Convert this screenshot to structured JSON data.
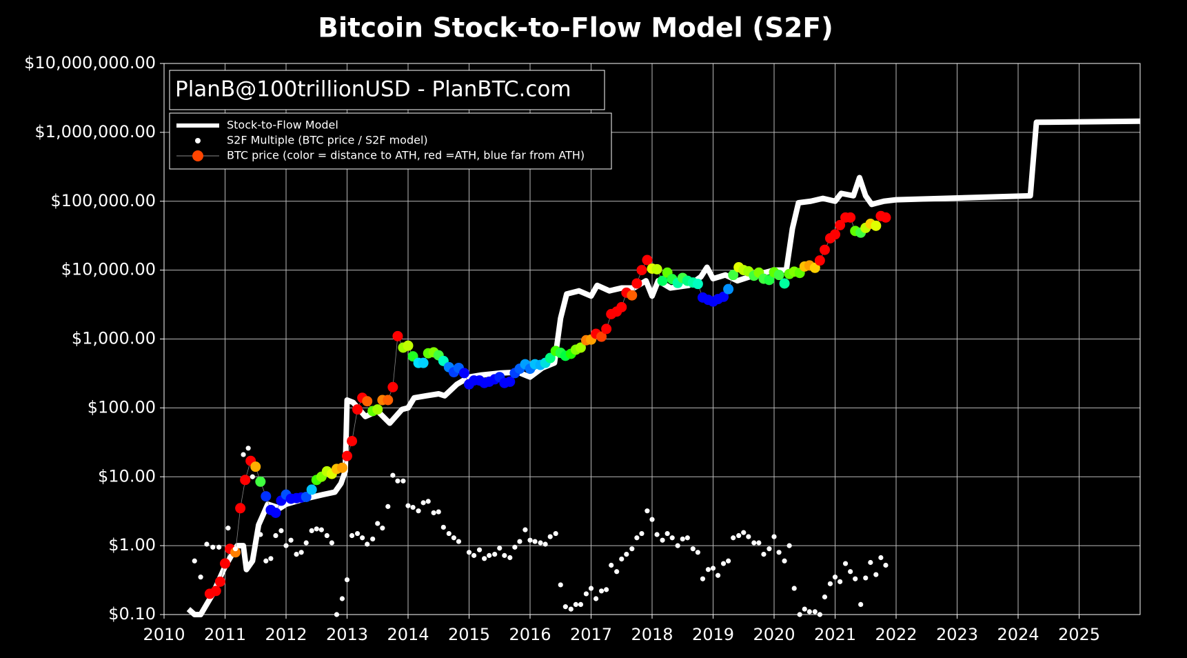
{
  "chart_data": {
    "type": "line",
    "title": "Bitcoin Stock-to-Flow Model (S2F)",
    "annotation": "PlanB@100trillionUSD - PlanBTC.com",
    "log_y": true,
    "grid": true,
    "legend": "upper left",
    "xlim": [
      2010,
      2026
    ],
    "xticks": [
      2010,
      2011,
      2012,
      2013,
      2014,
      2015,
      2016,
      2017,
      2018,
      2019,
      2020,
      2021,
      2022,
      2023,
      2024,
      2025
    ],
    "ylim": [
      0.1,
      10000000
    ],
    "yticks": [
      {
        "value": 0.1,
        "label": "$0.10"
      },
      {
        "value": 1,
        "label": "$1.00"
      },
      {
        "value": 10,
        "label": "$10.00"
      },
      {
        "value": 100,
        "label": "$100.00"
      },
      {
        "value": 1000,
        "label": "$1,000.00"
      },
      {
        "value": 10000,
        "label": "$10,000.00"
      },
      {
        "value": 100000,
        "label": "$100,000.00"
      },
      {
        "value": 1000000,
        "label": "$1,000,000.00"
      },
      {
        "value": 10000000,
        "label": "$10,000,000.00"
      }
    ],
    "series": [
      {
        "name": "Stock-to-Flow Model",
        "kind": "line",
        "color": "#ffffff",
        "x": [
          2010.4,
          2010.5,
          2010.6,
          2010.8,
          2011.0,
          2011.2,
          2011.3,
          2011.35,
          2011.45,
          2011.55,
          2011.7,
          2011.9,
          2012.0,
          2012.2,
          2012.4,
          2012.6,
          2012.8,
          2012.9,
          2012.97,
          2013.0,
          2013.1,
          2013.3,
          2013.5,
          2013.7,
          2013.9,
          2014.0,
          2014.1,
          2014.3,
          2014.5,
          2014.6,
          2014.8,
          2015.0,
          2015.2,
          2015.5,
          2015.8,
          2016.0,
          2016.2,
          2016.4,
          2016.5,
          2016.6,
          2016.8,
          2017.0,
          2017.1,
          2017.3,
          2017.5,
          2017.7,
          2017.9,
          2018.0,
          2018.1,
          2018.3,
          2018.6,
          2018.8,
          2018.9,
          2019.0,
          2019.2,
          2019.4,
          2019.6,
          2019.8,
          2020.0,
          2020.2,
          2020.3,
          2020.4,
          2020.6,
          2020.8,
          2021.0,
          2021.1,
          2021.3,
          2021.4,
          2021.5,
          2021.6,
          2021.8,
          2022.0,
          2024.2,
          2024.3,
          2026.0
        ],
        "values": [
          0.12,
          0.1,
          0.1,
          0.2,
          0.5,
          1.0,
          1.0,
          0.45,
          0.6,
          2,
          4,
          3.5,
          4,
          4.5,
          5,
          5.5,
          6,
          8,
          12,
          130,
          120,
          75,
          90,
          60,
          95,
          100,
          140,
          150,
          160,
          150,
          220,
          280,
          300,
          320,
          330,
          280,
          380,
          450,
          2000,
          4500,
          5000,
          4200,
          6000,
          5000,
          5500,
          5500,
          7000,
          4200,
          7000,
          5500,
          6000,
          8000,
          11000,
          7500,
          8500,
          7000,
          8000,
          9000,
          10000,
          10000,
          40000,
          95000,
          100000,
          110000,
          100000,
          130000,
          120000,
          220000,
          120000,
          90000,
          100000,
          105000,
          120000,
          1400000,
          1450000
        ]
      },
      {
        "name": "S2F Multiple (BTC price / S2F model)",
        "kind": "scatter",
        "color": "#ffffff",
        "x": [
          2010.5,
          2010.6,
          2010.7,
          2010.8,
          2010.9,
          2011.05,
          2011.17,
          2011.3,
          2011.38,
          2011.45,
          2011.58,
          2011.67,
          2011.75,
          2011.83,
          2011.92,
          2012.0,
          2012.08,
          2012.17,
          2012.25,
          2012.33,
          2012.42,
          2012.5,
          2012.58,
          2012.67,
          2012.75,
          2012.83,
          2012.92,
          2013.0,
          2013.08,
          2013.17,
          2013.25,
          2013.33,
          2013.42,
          2013.5,
          2013.58,
          2013.67,
          2013.75,
          2013.83,
          2013.92,
          2014.0,
          2014.08,
          2014.17,
          2014.25,
          2014.33,
          2014.42,
          2014.5,
          2014.58,
          2014.67,
          2014.75,
          2014.83,
          2015.0,
          2015.08,
          2015.17,
          2015.25,
          2015.33,
          2015.42,
          2015.5,
          2015.58,
          2015.67,
          2015.75,
          2015.83,
          2015.92,
          2016.0,
          2016.08,
          2016.17,
          2016.25,
          2016.33,
          2016.42,
          2016.5,
          2016.58,
          2016.67,
          2016.75,
          2016.83,
          2016.92,
          2017.0,
          2017.08,
          2017.17,
          2017.25,
          2017.33,
          2017.42,
          2017.5,
          2017.58,
          2017.67,
          2017.75,
          2017.83,
          2017.92,
          2018.0,
          2018.08,
          2018.17,
          2018.25,
          2018.33,
          2018.42,
          2018.5,
          2018.58,
          2018.67,
          2018.75,
          2018.83,
          2018.92,
          2019.0,
          2019.08,
          2019.17,
          2019.25,
          2019.33,
          2019.42,
          2019.5,
          2019.58,
          2019.67,
          2019.75,
          2019.83,
          2019.92,
          2020.0,
          2020.08,
          2020.17,
          2020.25,
          2020.33,
          2020.42,
          2020.5,
          2020.58,
          2020.67,
          2020.75,
          2020.83,
          2020.92,
          2021.0,
          2021.08,
          2021.17,
          2021.25,
          2021.33,
          2021.42,
          2021.5,
          2021.58,
          2021.67,
          2021.75,
          2021.83
        ],
        "values": [
          0.6,
          0.35,
          1.05,
          0.95,
          0.95,
          1.8,
          0.9,
          21,
          26,
          10,
          1.45,
          0.6,
          0.65,
          1.4,
          1.65,
          1.0,
          1.2,
          0.75,
          0.8,
          1.1,
          1.65,
          1.75,
          1.7,
          1.4,
          1.1,
          0.1,
          0.17,
          0.32,
          1.4,
          1.5,
          1.3,
          1.05,
          1.25,
          2.1,
          1.8,
          3.7,
          10.5,
          8.7,
          8.7,
          3.8,
          3.6,
          3.2,
          4.2,
          4.4,
          3.0,
          3.1,
          1.85,
          1.5,
          1.3,
          1.15,
          0.8,
          0.72,
          0.87,
          0.65,
          0.72,
          0.75,
          0.92,
          0.72,
          0.67,
          0.95,
          1.15,
          1.7,
          1.2,
          1.15,
          1.1,
          1.05,
          1.35,
          1.5,
          0.27,
          0.13,
          0.12,
          0.14,
          0.14,
          0.2,
          0.24,
          0.17,
          0.22,
          0.23,
          0.52,
          0.42,
          0.64,
          0.75,
          0.9,
          1.3,
          1.5,
          3.2,
          2.4,
          1.45,
          1.2,
          1.5,
          1.3,
          1.0,
          1.25,
          1.3,
          0.9,
          0.8,
          0.33,
          0.45,
          0.47,
          0.37,
          0.55,
          0.6,
          1.3,
          1.4,
          1.55,
          1.35,
          1.1,
          1.1,
          0.75,
          0.9,
          1.35,
          0.8,
          0.6,
          1.0,
          0.24,
          0.1,
          0.12,
          0.11,
          0.11,
          0.1,
          0.18,
          0.28,
          0.35,
          0.3,
          0.55,
          0.42,
          0.33,
          0.14,
          0.34,
          0.57,
          0.38,
          0.67,
          0.52
        ]
      },
      {
        "name": "BTC price (color = distance to ATH, red =ATH, blue far from ATH)",
        "kind": "scatter-line",
        "color": "#888888",
        "marker_color": "#ff4500",
        "x": [
          2010.75,
          2010.85,
          2010.92,
          2011.0,
          2011.08,
          2011.17,
          2011.25,
          2011.33,
          2011.42,
          2011.5,
          2011.58,
          2011.67,
          2011.75,
          2011.83,
          2011.92,
          2012.0,
          2012.08,
          2012.17,
          2012.25,
          2012.33,
          2012.42,
          2012.5,
          2012.58,
          2012.67,
          2012.75,
          2012.83,
          2012.92,
          2013.0,
          2013.08,
          2013.17,
          2013.25,
          2013.33,
          2013.42,
          2013.5,
          2013.58,
          2013.67,
          2013.75,
          2013.83,
          2013.92,
          2014.0,
          2014.08,
          2014.17,
          2014.25,
          2014.33,
          2014.42,
          2014.5,
          2014.58,
          2014.67,
          2014.75,
          2014.83,
          2014.92,
          2015.0,
          2015.08,
          2015.17,
          2015.25,
          2015.33,
          2015.42,
          2015.5,
          2015.58,
          2015.67,
          2015.75,
          2015.83,
          2015.92,
          2016.0,
          2016.08,
          2016.17,
          2016.25,
          2016.33,
          2016.42,
          2016.5,
          2016.58,
          2016.67,
          2016.75,
          2016.83,
          2016.92,
          2017.0,
          2017.08,
          2017.17,
          2017.25,
          2017.33,
          2017.42,
          2017.5,
          2017.58,
          2017.67,
          2017.75,
          2017.83,
          2017.92,
          2018.0,
          2018.08,
          2018.17,
          2018.25,
          2018.33,
          2018.42,
          2018.5,
          2018.58,
          2018.67,
          2018.75,
          2018.83,
          2018.92,
          2019.0,
          2019.08,
          2019.17,
          2019.25,
          2019.33,
          2019.42,
          2019.5,
          2019.58,
          2019.67,
          2019.75,
          2019.83,
          2019.92,
          2020.0,
          2020.08,
          2020.17,
          2020.25,
          2020.33,
          2020.42,
          2020.5,
          2020.58,
          2020.67,
          2020.75,
          2020.83,
          2020.92,
          2021.0,
          2021.08,
          2021.17,
          2021.25,
          2021.33,
          2021.42,
          2021.5,
          2021.58,
          2021.67,
          2021.75,
          2021.83
        ],
        "values": [
          0.2,
          0.22,
          0.3,
          0.55,
          0.9,
          0.8,
          3.5,
          9,
          17,
          14,
          8.5,
          5.2,
          3.3,
          3,
          4.5,
          5.5,
          4.8,
          4.9,
          5,
          5.1,
          6.5,
          9,
          10,
          12,
          11,
          13,
          13.5,
          20,
          33,
          95,
          140,
          125,
          90,
          95,
          130,
          130,
          200,
          1100,
          750,
          800,
          560,
          450,
          450,
          620,
          640,
          580,
          480,
          390,
          330,
          380,
          320,
          220,
          250,
          250,
          230,
          240,
          260,
          280,
          230,
          240,
          320,
          370,
          430,
          370,
          430,
          420,
          450,
          530,
          670,
          630,
          570,
          610,
          700,
          750,
          960,
          980,
          1190,
          1080,
          1400,
          2300,
          2500,
          2900,
          4700,
          4300,
          6400,
          10000,
          14000,
          10500,
          10300,
          7000,
          9200,
          7400,
          6500,
          7700,
          7000,
          6600,
          6300,
          4000,
          3700,
          3500,
          3800,
          4100,
          5300,
          8500,
          11000,
          10000,
          9600,
          8300,
          9200,
          7500,
          7200,
          9300,
          8500,
          6400,
          8800,
          9500,
          9100,
          11300,
          11700,
          10800,
          13800,
          19700,
          29000,
          33000,
          45000,
          58000,
          58000,
          37000,
          35000,
          41000,
          47000,
          44000,
          61000,
          58000
        ],
        "colors": [
          "#ff0000",
          "#ff0000",
          "#ff0000",
          "#ff0000",
          "#ff0000",
          "#ff7f00",
          "#ff0000",
          "#ff0000",
          "#ff0000",
          "#ffb000",
          "#40ff40",
          "#0030ff",
          "#0000ff",
          "#0000ff",
          "#0000ff",
          "#0050ff",
          "#0000ff",
          "#0000ff",
          "#0000ff",
          "#0050ff",
          "#00c0ff",
          "#40ff00",
          "#80ff00",
          "#c0ff00",
          "#e0ff00",
          "#ffc000",
          "#ffa000",
          "#ff0000",
          "#ff0000",
          "#ff0000",
          "#ff0000",
          "#ff6000",
          "#60ff00",
          "#a0ff00",
          "#ff8000",
          "#ff6000",
          "#ff0000",
          "#ff0000",
          "#a0ff00",
          "#c0ff00",
          "#20ff20",
          "#00e0ff",
          "#00d0ff",
          "#60ff00",
          "#80ff00",
          "#40ff40",
          "#00ffc0",
          "#0080ff",
          "#0040ff",
          "#0060ff",
          "#0000ff",
          "#0000ff",
          "#0000ff",
          "#0000ff",
          "#0000ff",
          "#0000ff",
          "#0000ff",
          "#0020ff",
          "#0000ff",
          "#0000ff",
          "#0040ff",
          "#0060ff",
          "#00a0ff",
          "#0070ff",
          "#00c0ff",
          "#00b0ff",
          "#00e0e0",
          "#00ff80",
          "#40ff00",
          "#20ff40",
          "#00ff40",
          "#20ff00",
          "#80ff00",
          "#a0ff00",
          "#ff8000",
          "#ffa000",
          "#ff0000",
          "#ff4000",
          "#ff0000",
          "#ff0000",
          "#ff0000",
          "#ff0000",
          "#ff0000",
          "#ff6000",
          "#ff0000",
          "#ff0000",
          "#ff0000",
          "#e0ff00",
          "#c0ff00",
          "#00ff60",
          "#60ff00",
          "#20ff40",
          "#00ffa0",
          "#40ff40",
          "#00ff80",
          "#00ffa0",
          "#00ffc0",
          "#0000ff",
          "#0000ff",
          "#0000ff",
          "#0000ff",
          "#0000ff",
          "#0090ff",
          "#40ff40",
          "#e0ff00",
          "#c0ff00",
          "#a0ff00",
          "#40ff40",
          "#80ff00",
          "#40ff40",
          "#20ff40",
          "#60ff00",
          "#40ff40",
          "#00ffa0",
          "#60ff00",
          "#80ff00",
          "#60ff00",
          "#ffc000",
          "#ffa000",
          "#ffd000",
          "#ff0000",
          "#ff0000",
          "#ff0000",
          "#ff0000",
          "#ff0000",
          "#ff0000",
          "#ff0000",
          "#60ff00",
          "#40ff40",
          "#c0ff00",
          "#ffd000",
          "#e0ff00",
          "#ff0000",
          "#ff0000"
        ]
      }
    ]
  }
}
